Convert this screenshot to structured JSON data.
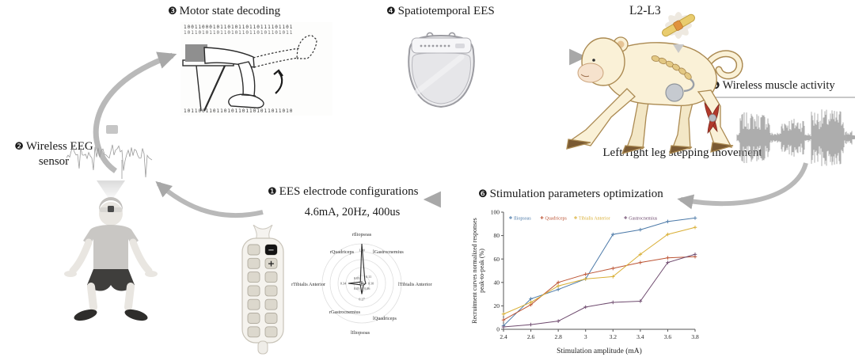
{
  "steps": {
    "electrode": {
      "badge": "❶",
      "label": "EES electrode configurations",
      "params": "4.6mA, 20Hz, 400us"
    },
    "eeg": {
      "badge": "❷",
      "label_line1": "Wireless EEG",
      "label_line2": "sensor"
    },
    "motor": {
      "badge": "❸",
      "label": "Motor state decoding",
      "raster_top1": "100110001011010110110111101101",
      "raster_top2": "101101011011010110110101101011",
      "raster_bottom": "101100110110101101101011011010"
    },
    "ees": {
      "badge": "❹",
      "label": "Spatiotemporal EES"
    },
    "muscle": {
      "badge": "❺",
      "label": "Wireless muscle activity"
    },
    "optimization": {
      "badge": "❻",
      "label": "Stimulation parameters optimization"
    }
  },
  "monkey": {
    "spine_label": "L2-L3",
    "caption": "Left/right leg stepping movement"
  },
  "paddle": {
    "minus": "−",
    "plus": "+"
  },
  "colors": {
    "arrow": "#b4b4b4",
    "monkey_fill": "#faf1d7",
    "monkey_stroke": "#ab8a52",
    "muscle_red": "#b23a2c",
    "text": "#1b1b1b"
  },
  "chart_data": [
    {
      "name": "recruitment-curves",
      "type": "line",
      "x": [
        2.4,
        2.6,
        2.8,
        3.0,
        3.2,
        3.4,
        3.6,
        3.8
      ],
      "series": [
        {
          "name": "Iliopsoas",
          "color": "#4b79a8",
          "values": [
            3,
            26,
            34,
            43,
            81,
            85,
            92,
            95
          ]
        },
        {
          "name": "Quadriceps",
          "color": "#bc5434",
          "values": [
            8,
            21,
            40,
            47,
            52,
            57,
            61,
            62
          ]
        },
        {
          "name": "Tibialis Anterior",
          "color": "#d9af35",
          "values": [
            13,
            23,
            37,
            43,
            45,
            64,
            81,
            87
          ]
        },
        {
          "name": "Gastrocnemius",
          "color": "#6e4a6e",
          "values": [
            2,
            4,
            7,
            19,
            23,
            24,
            57,
            64
          ]
        }
      ],
      "xlabel": "Stimulation amplitude (mA)",
      "ylabel": "Recruitment curves normalized responses\npeak-to-peak (%)",
      "ylim": [
        0,
        100
      ],
      "yticks": [
        0,
        20,
        40,
        60,
        80,
        100
      ],
      "legend_position": "top-left",
      "grid": false
    },
    {
      "name": "muscle-selectivity-radar",
      "type": "radar",
      "categories": [
        "rIliopsoas",
        "lGastrocnemius",
        "lTibialis Anterior",
        "lQuadriceps",
        "lIliopsoas",
        "rGastrocnemius",
        "rTibialis Anterior",
        "rQuadriceps"
      ],
      "values": [
        1.0,
        0.11,
        0.1,
        0.06,
        0.27,
        0.05,
        0.34,
        0.05
      ],
      "rings": 5,
      "max": 1.0
    }
  ]
}
